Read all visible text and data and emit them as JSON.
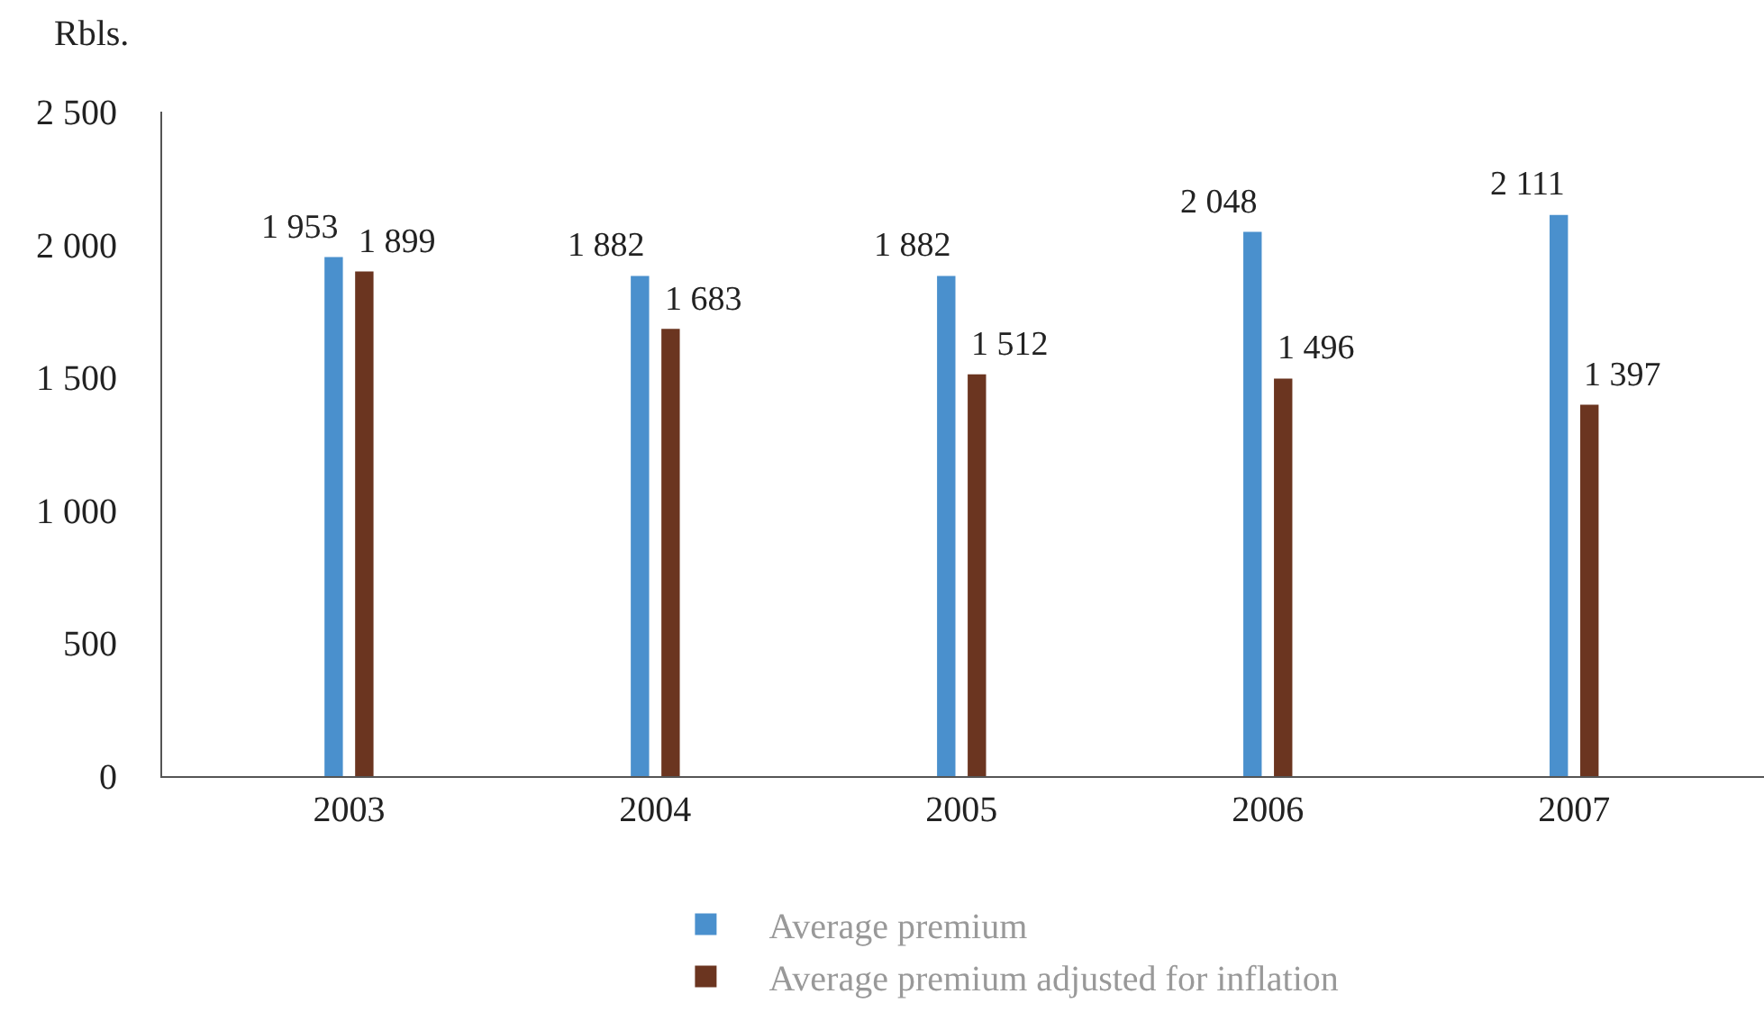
{
  "chart_data": {
    "type": "bar",
    "ylabel": "Rbls.",
    "categories": [
      "2003",
      "2004",
      "2005",
      "2006",
      "2007"
    ],
    "series": [
      {
        "name": "Average premium",
        "color": "#4a90cd",
        "values": [
          1953,
          1882,
          1882,
          2048,
          2111
        ],
        "value_labels": [
          "1 953",
          "1 882",
          "1 882",
          "2 048",
          "2 111"
        ]
      },
      {
        "name": "Average premium adjusted for inflation",
        "color": "#6b3520",
        "values": [
          1899,
          1683,
          1512,
          1496,
          1397
        ],
        "value_labels": [
          "1 899",
          "1 683",
          "1 512",
          "1 496",
          "1 397"
        ]
      }
    ],
    "ylim": [
      0,
      2500
    ],
    "yticks": [
      {
        "value": 0,
        "label": "0"
      },
      {
        "value": 500,
        "label": "500"
      },
      {
        "value": 1000,
        "label": "1 000"
      },
      {
        "value": 1500,
        "label": "1 500"
      },
      {
        "value": 2000,
        "label": "2 000"
      },
      {
        "value": 2500,
        "label": "2 500"
      }
    ],
    "legend": "bottom"
  }
}
